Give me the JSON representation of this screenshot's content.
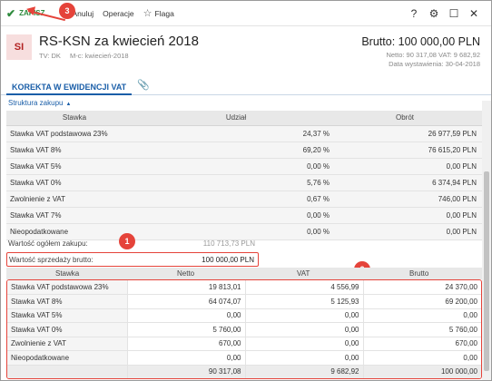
{
  "toolbar": {
    "save_label": "ZAPISZ",
    "cancel_label": "Anuluj",
    "operations_label": "Operacje",
    "flag_label": "Flaga",
    "icons": [
      "check-icon",
      "star-icon",
      "help-icon",
      "gear-icon",
      "maximize-icon",
      "close-icon"
    ]
  },
  "annotations": {
    "badge1": "1",
    "badge2": "2",
    "badge3": "3"
  },
  "document": {
    "type_code": "SI",
    "title": "RS-KSN za kwiecień 2018",
    "tv": "TV: DK",
    "month": "M-c: kwiecień-2018",
    "brutto": "Brutto: 100 000,00 PLN",
    "netto_vat": "Netto: 90 317,08 VAT: 9 682,92",
    "issued": "Data wystawienia: 30-04-2018"
  },
  "tabs": {
    "active": "KOREKTA W EWIDENCJI VAT"
  },
  "structure_link": "Struktura zakupu",
  "purchase_table": {
    "headers": [
      "Stawka",
      "Udział",
      "Obrót"
    ],
    "rows": [
      [
        "Stawka VAT podstawowa 23%",
        "24,37 %",
        "26 977,59 PLN"
      ],
      [
        "Stawka VAT 8%",
        "69,20 %",
        "76 615,20 PLN"
      ],
      [
        "Stawka VAT 5%",
        "0,00 %",
        "0,00 PLN"
      ],
      [
        "Stawka VAT 0%",
        "5,76 %",
        "6 374,94 PLN"
      ],
      [
        "Zwolnienie z VAT",
        "0,67 %",
        "746,00 PLN"
      ],
      [
        "Stawka VAT 7%",
        "0,00 %",
        "0,00 PLN"
      ],
      [
        "Nieopodatkowane",
        "0,00 %",
        "0,00 PLN"
      ]
    ]
  },
  "totals": {
    "purchase_label": "Wartość ogółem zakupu:",
    "purchase_value": "110 713,73 PLN",
    "sales_label": "Wartość sprzedaży brutto:",
    "sales_value": "100 000,00 PLN"
  },
  "sales_table": {
    "headers": [
      "Stawka",
      "Netto",
      "VAT",
      "Brutto"
    ],
    "rows": [
      [
        "Stawka VAT podstawowa 23%",
        "19 813,01",
        "4 556,99",
        "24 370,00"
      ],
      [
        "Stawka VAT 8%",
        "64 074,07",
        "5 125,93",
        "69 200,00"
      ],
      [
        "Stawka VAT 5%",
        "0,00",
        "0,00",
        "0,00"
      ],
      [
        "Stawka VAT 0%",
        "5 760,00",
        "0,00",
        "5 760,00"
      ],
      [
        "Zwolnienie z VAT",
        "670,00",
        "0,00",
        "670,00"
      ],
      [
        "Nieopodatkowane",
        "0,00",
        "0,00",
        "0,00"
      ]
    ],
    "total": [
      "",
      "90 317,08",
      "9 682,92",
      "100 000,00"
    ]
  }
}
